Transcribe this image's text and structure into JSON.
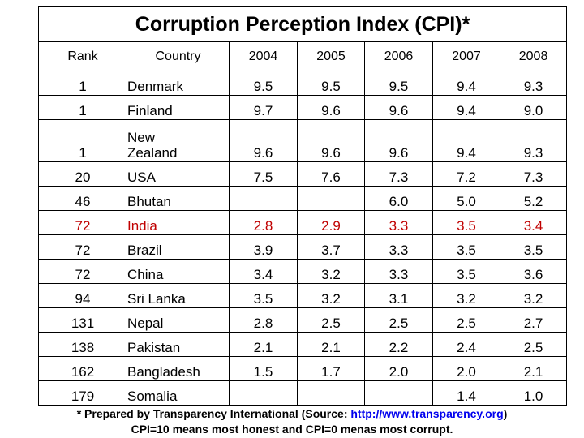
{
  "title": "Corruption Perception Index (CPI)*",
  "columns": [
    "Rank",
    "Country",
    "2004",
    "2005",
    "2006",
    "2007",
    "2008"
  ],
  "rows": [
    {
      "rank": "1",
      "country": "Denmark",
      "values": [
        "9.5",
        "9.5",
        "9.5",
        "9.4",
        "9.3"
      ]
    },
    {
      "rank": "1",
      "country": "Finland",
      "values": [
        "9.7",
        "9.6",
        "9.6",
        "9.4",
        "9.0"
      ]
    },
    {
      "rank": "1",
      "country": "New Zealand",
      "values": [
        "9.6",
        "9.6",
        "9.6",
        "9.4",
        "9.3"
      ]
    },
    {
      "rank": "20",
      "country": "USA",
      "values": [
        "7.5",
        "7.6",
        "7.3",
        "7.2",
        "7.3"
      ]
    },
    {
      "rank": "46",
      "country": "Bhutan",
      "values": [
        "",
        "",
        "6.0",
        "5.0",
        "5.2"
      ]
    },
    {
      "rank": "72",
      "country": "India",
      "values": [
        "2.8",
        "2.9",
        "3.3",
        "3.5",
        "3.4"
      ]
    },
    {
      "rank": "72",
      "country": "Brazil",
      "values": [
        "3.9",
        "3.7",
        "3.3",
        "3.5",
        "3.5"
      ]
    },
    {
      "rank": "72",
      "country": "China",
      "values": [
        "3.4",
        "3.2",
        "3.3",
        "3.5",
        "3.6"
      ]
    },
    {
      "rank": "94",
      "country": "Sri Lanka",
      "values": [
        "3.5",
        "3.2",
        "3.1",
        "3.2",
        "3.2"
      ]
    },
    {
      "rank": "131",
      "country": "Nepal",
      "values": [
        "2.8",
        "2.5",
        "2.5",
        "2.5",
        "2.7"
      ]
    },
    {
      "rank": "138",
      "country": "Pakistan",
      "values": [
        "2.1",
        "2.1",
        "2.2",
        "2.4",
        "2.5"
      ]
    },
    {
      "rank": "162",
      "country": "Bangladesh",
      "values": [
        "1.5",
        "1.7",
        "2.0",
        "2.0",
        "2.1"
      ]
    },
    {
      "rank": "179",
      "country": "Somalia",
      "values": [
        "",
        "",
        "",
        "1.4",
        "1.0"
      ]
    }
  ],
  "highlight_color": "#c00000",
  "footnote": {
    "line1_prefix": "* Prepared by Transparency International (Source: ",
    "link": "http://www.transparency.org",
    "line1_suffix": ")",
    "line2": "CPI=10 means most honest and CPI=0 menas most corrupt."
  }
}
